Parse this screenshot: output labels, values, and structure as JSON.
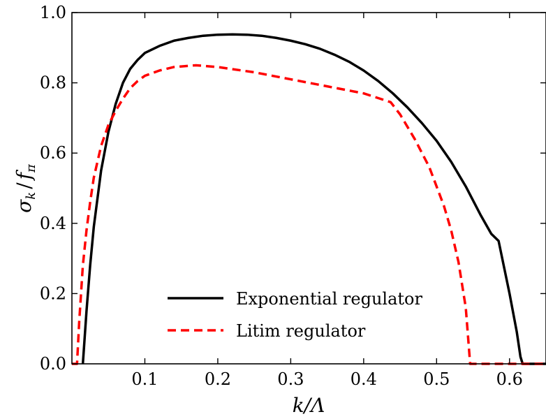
{
  "chart_data": {
    "type": "line",
    "xlabel": "k/Λ",
    "ylabel": "σ_k / f_π",
    "ylabel_parts": {
      "sigma": "σ",
      "k": "k",
      "slash": "/",
      "f": "f",
      "pi": "π"
    },
    "xlim": [
      0.0,
      0.65
    ],
    "ylim": [
      0.0,
      1.0
    ],
    "xticks": [
      0.1,
      0.2,
      0.3,
      0.4,
      0.5,
      0.6
    ],
    "xtick_labels": [
      "0.1",
      "0.2",
      "0.3",
      "0.4",
      "0.5",
      "0.6"
    ],
    "yticks": [
      0.0,
      0.2,
      0.4,
      0.6,
      0.8,
      1.0
    ],
    "ytick_labels": [
      "0.0",
      "0.2",
      "0.4",
      "0.6",
      "0.8",
      "1.0"
    ],
    "grid": false,
    "legend_position": "lower-center",
    "series": [
      {
        "name": "Exponential regulator",
        "color": "#000000",
        "style": "solid",
        "x": [
          0.015,
          0.017,
          0.02,
          0.025,
          0.03,
          0.04,
          0.05,
          0.06,
          0.07,
          0.08,
          0.09,
          0.1,
          0.12,
          0.14,
          0.16,
          0.18,
          0.2,
          0.22,
          0.24,
          0.26,
          0.28,
          0.3,
          0.32,
          0.34,
          0.36,
          0.38,
          0.4,
          0.42,
          0.44,
          0.46,
          0.48,
          0.5,
          0.52,
          0.54,
          0.56,
          0.575,
          0.585,
          0.6,
          0.61,
          0.615,
          0.618,
          0.65
        ],
        "y": [
          0.0,
          0.06,
          0.15,
          0.28,
          0.39,
          0.55,
          0.66,
          0.74,
          0.8,
          0.84,
          0.865,
          0.885,
          0.905,
          0.92,
          0.928,
          0.934,
          0.937,
          0.938,
          0.937,
          0.934,
          0.928,
          0.92,
          0.91,
          0.897,
          0.88,
          0.86,
          0.835,
          0.805,
          0.77,
          0.73,
          0.685,
          0.635,
          0.575,
          0.505,
          0.425,
          0.37,
          0.35,
          0.2,
          0.09,
          0.02,
          0.0,
          0.0
        ]
      },
      {
        "name": "Litim regulator",
        "color": "#ff0000",
        "style": "dashed",
        "x": [
          0.0,
          0.007,
          0.01,
          0.015,
          0.02,
          0.025,
          0.03,
          0.04,
          0.05,
          0.06,
          0.07,
          0.08,
          0.09,
          0.1,
          0.12,
          0.14,
          0.17,
          0.2,
          0.25,
          0.3,
          0.35,
          0.4,
          0.437,
          0.45,
          0.47,
          0.49,
          0.51,
          0.52,
          0.53,
          0.54,
          0.543,
          0.546,
          0.65
        ],
        "y": [
          0.0,
          0.0,
          0.12,
          0.28,
          0.38,
          0.46,
          0.53,
          0.62,
          0.68,
          0.72,
          0.755,
          0.785,
          0.805,
          0.82,
          0.835,
          0.845,
          0.85,
          0.845,
          0.83,
          0.81,
          0.79,
          0.77,
          0.745,
          0.71,
          0.64,
          0.56,
          0.45,
          0.38,
          0.29,
          0.16,
          0.08,
          0.0,
          0.0
        ]
      }
    ]
  }
}
